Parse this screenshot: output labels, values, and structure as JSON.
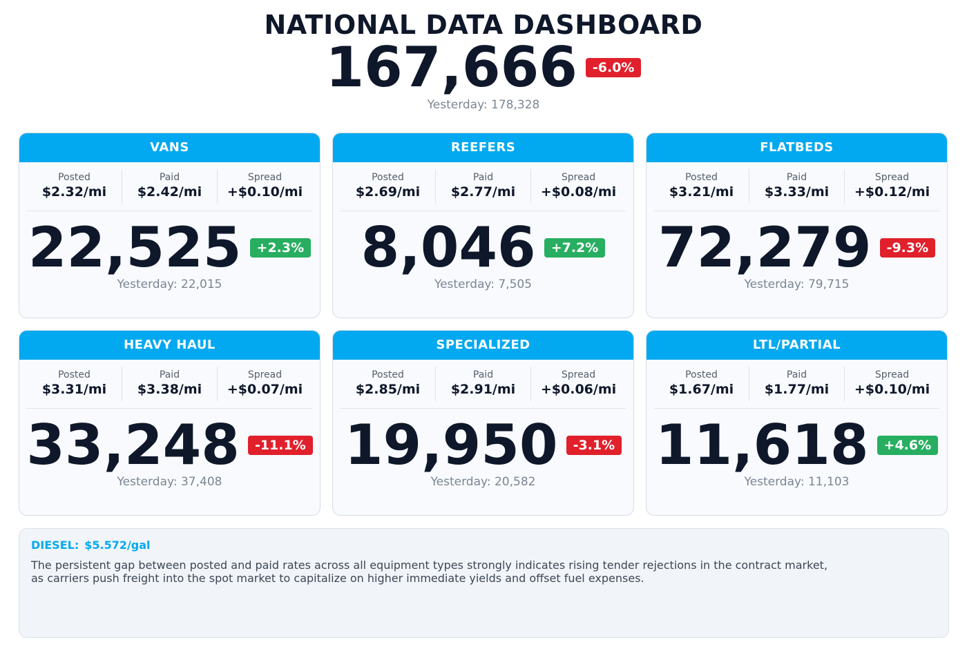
{
  "header": {
    "title": "NATIONAL DATA DASHBOARD",
    "total": "167,666",
    "change": "-6.0%",
    "yesterday": "Yesterday: 178,328"
  },
  "metric_labels": [
    "Posted",
    "Paid",
    "Spread"
  ],
  "cards": [
    {
      "name": "VANS",
      "rates": [
        "$2.32/mi",
        "$2.42/mi",
        "+$0.10/mi"
      ],
      "count": "22,525",
      "change": "+2.3%",
      "yesterday": "Yesterday: 22,015"
    },
    {
      "name": "REEFERS",
      "rates": [
        "$2.69/mi",
        "$2.77/mi",
        "+$0.08/mi"
      ],
      "count": "8,046",
      "change": "+7.2%",
      "yesterday": "Yesterday: 7,505"
    },
    {
      "name": "FLATBEDS",
      "rates": [
        "$3.21/mi",
        "$3.33/mi",
        "+$0.12/mi"
      ],
      "count": "72,279",
      "change": "-9.3%",
      "yesterday": "Yesterday: 79,715"
    },
    {
      "name": "HEAVY HAUL",
      "rates": [
        "$3.31/mi",
        "$3.38/mi",
        "+$0.07/mi"
      ],
      "count": "33,248",
      "change": "-11.1%",
      "yesterday": "Yesterday: 37,408"
    },
    {
      "name": "SPECIALIZED",
      "rates": [
        "$2.85/mi",
        "$2.91/mi",
        "+$0.06/mi"
      ],
      "count": "19,950",
      "change": "-3.1%",
      "yesterday": "Yesterday: 20,582"
    },
    {
      "name": "LTL/PARTIAL",
      "rates": [
        "$1.67/mi",
        "$1.77/mi",
        "+$0.10/mi"
      ],
      "count": "11,618",
      "change": "+4.6%",
      "yesterday": "Yesterday: 11,103"
    }
  ],
  "footer": {
    "diesel_label": "DIESEL:",
    "diesel_price": "$5.572/gal",
    "note": [
      "The persistent gap between posted and paid rates across all equipment types strongly indicates rising tender rejections in the contract market,",
      "as carriers push freight into the spot market to capitalize on higher immediate yields and offset fuel expenses."
    ]
  }
}
